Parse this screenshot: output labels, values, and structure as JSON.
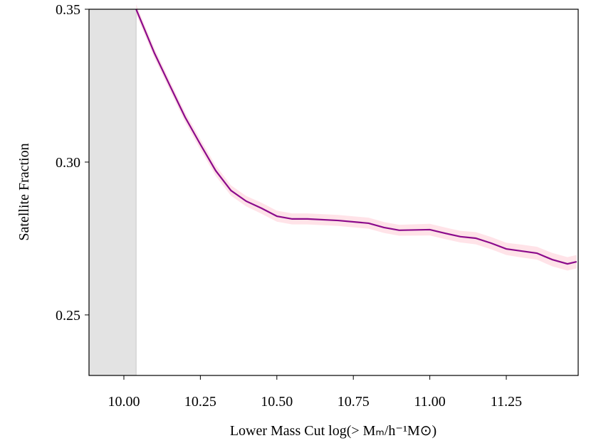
{
  "chart_data": {
    "type": "line",
    "xlabel": "Lower Mass Cut log(> Mₘ/h⁻¹M⊙)",
    "ylabel": "Satellite Fraction",
    "x": [
      10.04,
      10.1,
      10.15,
      10.2,
      10.25,
      10.3,
      10.35,
      10.4,
      10.45,
      10.5,
      10.55,
      10.6,
      10.7,
      10.8,
      10.85,
      10.9,
      11.0,
      11.05,
      11.1,
      11.15,
      11.2,
      11.25,
      11.3,
      11.35,
      11.4,
      11.45,
      11.48
    ],
    "series": [
      {
        "color": "#8b0a8b",
        "values": [
          0.35,
          0.3356,
          0.3251,
          0.3147,
          0.3058,
          0.2972,
          0.2907,
          0.2872,
          0.2849,
          0.2823,
          0.2814,
          0.2814,
          0.2809,
          0.28,
          0.2786,
          0.2777,
          0.2779,
          0.2767,
          0.2756,
          0.2751,
          0.2735,
          0.2716,
          0.2709,
          0.2702,
          0.2681,
          0.2667,
          0.2674
        ]
      }
    ],
    "band": {
      "color": "#ffc0cb",
      "lower": [
        0.3484,
        0.334,
        0.3235,
        0.3131,
        0.3041,
        0.2955,
        0.289,
        0.2855,
        0.2831,
        0.2805,
        0.2796,
        0.2796,
        0.2791,
        0.2782,
        0.2768,
        0.2759,
        0.276,
        0.2748,
        0.2737,
        0.2731,
        0.2715,
        0.2696,
        0.2688,
        0.2681,
        0.2659,
        0.2645,
        0.2652
      ],
      "upper": [
        0.3516,
        0.3372,
        0.3267,
        0.3163,
        0.3075,
        0.2989,
        0.2924,
        0.2889,
        0.2867,
        0.2841,
        0.2832,
        0.2832,
        0.2827,
        0.2818,
        0.2804,
        0.2795,
        0.2798,
        0.2786,
        0.2775,
        0.2771,
        0.2755,
        0.2736,
        0.273,
        0.2723,
        0.2703,
        0.2689,
        0.2696
      ]
    },
    "shade_to": 10.04,
    "xlim": [
      9.886,
      11.485
    ],
    "ylim": [
      0.2302,
      0.35
    ],
    "xticks": [
      {
        "value": 10.0,
        "label": "10.00"
      },
      10.25,
      {
        "value": 10.5,
        "label": "10.50"
      },
      10.75,
      {
        "value": 11.0,
        "label": "11.00"
      },
      11.25
    ],
    "yticks": [
      0.25,
      {
        "value": 0.3,
        "label": "0.30"
      },
      0.35
    ]
  }
}
